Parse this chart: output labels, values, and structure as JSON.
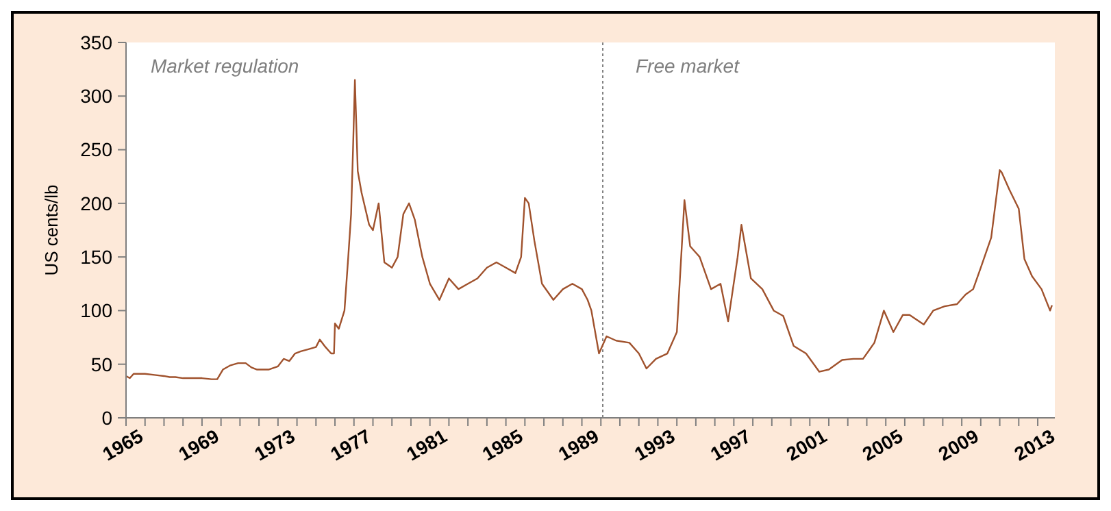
{
  "chart_data": {
    "type": "line",
    "ylabel": "US cents/lb",
    "annotations": [
      "Market regulation",
      "Free market"
    ],
    "ref_lines": [
      {
        "axis": "x",
        "value": 1990.1,
        "color": "#808080",
        "line_style": "dotted"
      }
    ],
    "xlim": [
      1965,
      2013.9
    ],
    "ylim": [
      0,
      350
    ],
    "yticks": [
      0,
      50,
      100,
      150,
      200,
      250,
      300,
      350
    ],
    "xticks": [
      1965,
      {
        "value": 1966,
        "label": null
      },
      {
        "value": 1967,
        "label": null
      },
      {
        "value": 1968,
        "label": null
      },
      1969,
      {
        "value": 1970,
        "label": null
      },
      {
        "value": 1971,
        "label": null
      },
      {
        "value": 1972,
        "label": null
      },
      1973,
      {
        "value": 1974,
        "label": null
      },
      {
        "value": 1975,
        "label": null
      },
      {
        "value": 1976,
        "label": null
      },
      1977,
      {
        "value": 1978,
        "label": null
      },
      {
        "value": 1979,
        "label": null
      },
      {
        "value": 1980,
        "label": null
      },
      1981,
      {
        "value": 1982,
        "label": null
      },
      {
        "value": 1983,
        "label": null
      },
      {
        "value": 1984,
        "label": null
      },
      1985,
      {
        "value": 1986,
        "label": null
      },
      {
        "value": 1987,
        "label": null
      },
      {
        "value": 1988,
        "label": null
      },
      1989,
      {
        "value": 1990,
        "label": null
      },
      {
        "value": 1991,
        "label": null
      },
      {
        "value": 1992,
        "label": null
      },
      1993,
      {
        "value": 1994,
        "label": null
      },
      {
        "value": 1995,
        "label": null
      },
      {
        "value": 1996,
        "label": null
      },
      1997,
      {
        "value": 1998,
        "label": null
      },
      {
        "value": 1999,
        "label": null
      },
      {
        "value": 2000,
        "label": null
      },
      2001,
      {
        "value": 2002,
        "label": null
      },
      {
        "value": 2003,
        "label": null
      },
      {
        "value": 2004,
        "label": null
      },
      2005,
      {
        "value": 2006,
        "label": null
      },
      {
        "value": 2007,
        "label": null
      },
      {
        "value": 2008,
        "label": null
      },
      2009,
      {
        "value": 2010,
        "label": null
      },
      {
        "value": 2011,
        "label": null
      },
      {
        "value": 2012,
        "label": null
      },
      2013
    ],
    "grid": false,
    "marker": "none",
    "line_style": "solid",
    "x": [
      1965.0,
      1965.2,
      1965.4,
      1966.0,
      1966.5,
      1967.0,
      1967.3,
      1967.6,
      1968.0,
      1969.0,
      1969.5,
      1969.8,
      1970.1,
      1970.5,
      1970.9,
      1971.3,
      1971.6,
      1971.9,
      1972.5,
      1973.0,
      1973.3,
      1973.6,
      1973.9,
      1974.2,
      1974.6,
      1975.0,
      1975.2,
      1975.5,
      1975.8,
      1975.95,
      1976.0,
      1976.2,
      1976.5,
      1976.7,
      1976.85,
      1976.95,
      1977.05,
      1977.2,
      1977.4,
      1977.8,
      1978.0,
      1978.3,
      1978.6,
      1979.0,
      1979.3,
      1979.6,
      1979.9,
      1980.2,
      1980.6,
      1981.0,
      1981.5,
      1982.0,
      1982.5,
      1983.0,
      1983.5,
      1984.0,
      1984.5,
      1985.0,
      1985.5,
      1985.8,
      1986.0,
      1986.2,
      1986.5,
      1986.9,
      1987.5,
      1988.0,
      1988.5,
      1989.0,
      1989.3,
      1989.5,
      1989.9,
      1990.3,
      1990.8,
      1991.5,
      1992.0,
      1992.4,
      1992.9,
      1993.5,
      1994.0,
      1994.4,
      1994.7,
      1995.2,
      1995.8,
      1996.3,
      1996.7,
      1997.2,
      1997.4,
      1997.9,
      1998.5,
      1999.1,
      1999.6,
      2000.15,
      2000.8,
      2001.5,
      2002.0,
      2002.7,
      2003.3,
      2003.8,
      2004.4,
      2004.9,
      2005.4,
      2005.9,
      2006.25,
      2007.0,
      2007.5,
      2008.1,
      2008.75,
      2009.2,
      2009.6,
      2010.0,
      2010.55,
      2011.0,
      2011.1,
      2011.5,
      2012.0,
      2012.3,
      2012.7,
      2013.2,
      2013.65,
      2013.75
    ],
    "series": [
      {
        "color": "#a0522d",
        "values": [
          39,
          37,
          41,
          41,
          40,
          39,
          38,
          38,
          37,
          37,
          36,
          36,
          45,
          49,
          51,
          51,
          47,
          45,
          45,
          48,
          55,
          53,
          60,
          62,
          64,
          66,
          73,
          66,
          60,
          60,
          88,
          83,
          100,
          150,
          190,
          250,
          315,
          230,
          210,
          180,
          175,
          200,
          145,
          140,
          150,
          190,
          200,
          185,
          150,
          125,
          110,
          130,
          120,
          125,
          130,
          140,
          145,
          140,
          135,
          150,
          205,
          200,
          165,
          125,
          110,
          120,
          125,
          120,
          110,
          100,
          60,
          76,
          72,
          70,
          60,
          46,
          55,
          60,
          80,
          203,
          160,
          150,
          120,
          125,
          90,
          150,
          180,
          130,
          120,
          100,
          95,
          67,
          60,
          43,
          45,
          54,
          55,
          55,
          70,
          100,
          80,
          96,
          96,
          87,
          100,
          104,
          106,
          115,
          120,
          140,
          168,
          231,
          229,
          213,
          195,
          148,
          132,
          120,
          100,
          105
        ]
      }
    ]
  }
}
